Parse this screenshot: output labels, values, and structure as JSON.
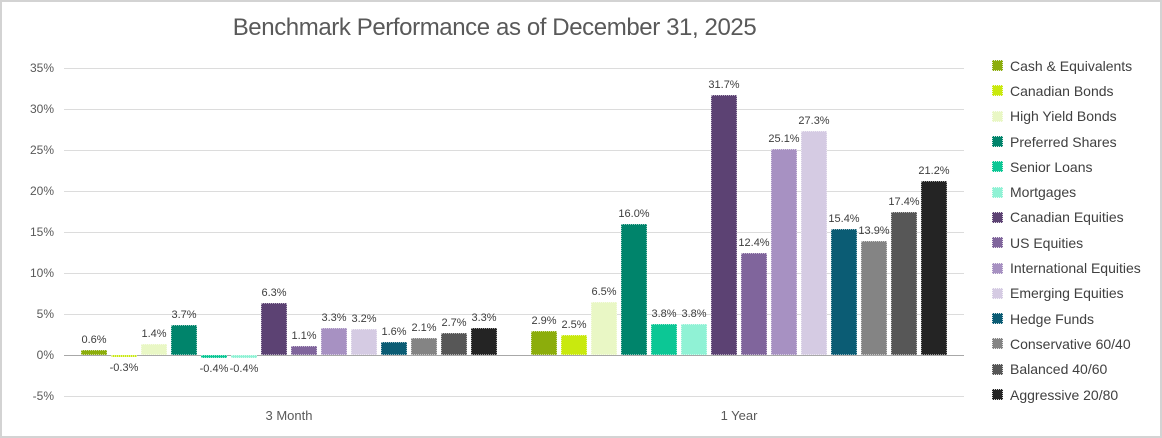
{
  "chart_data": {
    "type": "bar",
    "title": "Benchmark Performance as of December 31, 2025",
    "categories": [
      "3 Month",
      "1 Year"
    ],
    "series": [
      {
        "name": "Cash & Equivalents",
        "color": "#8cad0c",
        "values": [
          0.6,
          2.9
        ]
      },
      {
        "name": "Canadian Bonds",
        "color": "#c9e90e",
        "values": [
          -0.3,
          2.5
        ]
      },
      {
        "name": "High Yield Bonds",
        "color": "#e9f7c5",
        "values": [
          1.4,
          6.5
        ]
      },
      {
        "name": "Preferred Shares",
        "color": "#00846b",
        "values": [
          3.7,
          16.0
        ]
      },
      {
        "name": "Senior Loans",
        "color": "#0cc795",
        "values": [
          -0.4,
          3.8
        ]
      },
      {
        "name": "Mortgages",
        "color": "#90f2d5",
        "values": [
          -0.4,
          3.8
        ]
      },
      {
        "name": "Canadian Equities",
        "color": "#5c4273",
        "values": [
          6.3,
          31.7
        ]
      },
      {
        "name": "US Equities",
        "color": "#80659c",
        "values": [
          1.1,
          12.4
        ]
      },
      {
        "name": "International Equities",
        "color": "#a791c2",
        "values": [
          3.3,
          25.1
        ]
      },
      {
        "name": "Emerging Equities",
        "color": "#d5cbe3",
        "values": [
          3.2,
          27.3
        ]
      },
      {
        "name": "Hedge Funds",
        "color": "#0b5c74",
        "values": [
          1.6,
          15.4
        ]
      },
      {
        "name": "Conservative 60/40",
        "color": "#848484",
        "values": [
          2.1,
          13.9
        ]
      },
      {
        "name": "Balanced 40/60",
        "color": "#575757",
        "values": [
          2.7,
          17.4
        ]
      },
      {
        "name": "Aggressive 20/80",
        "color": "#242424",
        "values": [
          3.3,
          21.2
        ]
      }
    ],
    "ylim": [
      -5,
      35
    ],
    "yticks": [
      35,
      30,
      25,
      20,
      15,
      10,
      5,
      0,
      -5
    ],
    "ytick_labels": [
      "35%",
      "30%",
      "25%",
      "20%",
      "15%",
      "10%",
      "5%",
      "0%",
      "-5%"
    ],
    "value_suffix": "%",
    "grid": true,
    "legend_position": "right"
  }
}
